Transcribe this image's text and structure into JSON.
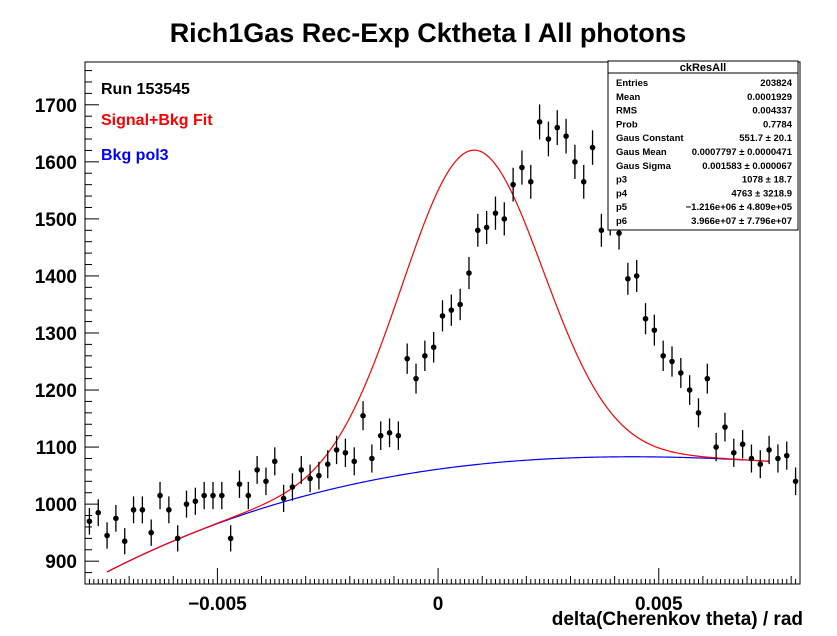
{
  "chart_data": {
    "type": "scatter",
    "title": "Rich1Gas Rec-Exp Cktheta I All photons",
    "xlabel": "delta(Cherenkov theta) / rad",
    "ylabel": "",
    "xlim": [
      -0.008,
      0.0082
    ],
    "ylim": [
      860,
      1775
    ],
    "x_tick_labels": [
      "−0.005",
      "0",
      "0.005"
    ],
    "x_tick_values": [
      -0.005,
      0,
      0.005
    ],
    "y_tick_labels": [
      "900",
      "1000",
      "1100",
      "1200",
      "1300",
      "1400",
      "1500",
      "1600",
      "1700"
    ],
    "y_tick_values": [
      900,
      1000,
      1100,
      1200,
      1300,
      1400,
      1500,
      1600,
      1700
    ],
    "grid": false,
    "legend_position": "top-left",
    "legend": [
      {
        "label": "Run 153545",
        "color": "#000000"
      },
      {
        "label": "Signal+Bkg Fit",
        "color": "#ff0000"
      },
      {
        "label": "Bkg pol3",
        "color": "#0000ff"
      }
    ],
    "stats_box": {
      "title": "ckResAll",
      "rows": [
        {
          "name": "Entries",
          "value": "203824"
        },
        {
          "name": "Mean",
          "value": "0.0001929"
        },
        {
          "name": "RMS",
          "value": "0.004337"
        },
        {
          "name": "Prob",
          "value": "0.7784"
        },
        {
          "name": "Gaus Constant",
          "value": "551.7 ± 20.1"
        },
        {
          "name": "Gaus Mean",
          "value": "0.0007797 ± 0.0000471"
        },
        {
          "name": "Gaus Sigma",
          "value": "0.001583 ± 0.000067"
        },
        {
          "name": "p3",
          "value": "1078 ± 18.7"
        },
        {
          "name": "p4",
          "value": "4763 ± 3218.9"
        },
        {
          "name": "p5",
          "value": "−1.216e+06 ± 4.809e+05"
        },
        {
          "name": "p6",
          "value": "3.966e+07 ± 7.796e+07"
        }
      ]
    },
    "series": [
      {
        "name": "All photons",
        "color": "#000000",
        "x": [
          -0.0079,
          -0.0077,
          -0.0075,
          -0.0073,
          -0.0071,
          -0.0069,
          -0.0067,
          -0.0065,
          -0.0063,
          -0.0061,
          -0.0059,
          -0.0057,
          -0.0055,
          -0.0053,
          -0.0051,
          -0.0049,
          -0.0047,
          -0.0045,
          -0.0043,
          -0.0041,
          -0.0039,
          -0.0037,
          -0.0035,
          -0.0033,
          -0.0031,
          -0.0029,
          -0.0027,
          -0.0025,
          -0.0023,
          -0.0021,
          -0.0019,
          -0.0017,
          -0.0015,
          -0.0013,
          -0.0011,
          -0.0009,
          -0.0007,
          -0.0005,
          -0.0003,
          -0.0001,
          0.0001,
          0.0003,
          0.0005,
          0.0007,
          0.0009,
          0.0011,
          0.0013,
          0.0015,
          0.0017,
          0.0019,
          0.0021,
          0.0023,
          0.0025,
          0.0027,
          0.0029,
          0.0031,
          0.0033,
          0.0035,
          0.0037,
          0.0039,
          0.0041,
          0.0043,
          0.0045,
          0.0047,
          0.0049,
          0.0051,
          0.0053,
          0.0055,
          0.0057,
          0.0059,
          0.0061,
          0.0063,
          0.0065,
          0.0067,
          0.0069,
          0.0071,
          0.0073,
          0.0075,
          0.0077,
          0.0079,
          0.0081
        ],
        "y": [
          970,
          985,
          945,
          975,
          935,
          990,
          990,
          950,
          1015,
          990,
          940,
          1000,
          1005,
          1015,
          1015,
          1015,
          940,
          1035,
          1015,
          1060,
          1040,
          1075,
          1010,
          1030,
          1060,
          1045,
          1050,
          1070,
          1095,
          1090,
          1075,
          1155,
          1080,
          1120,
          1125,
          1120,
          1255,
          1220,
          1260,
          1275,
          1330,
          1340,
          1350,
          1405,
          1480,
          1485,
          1510,
          1500,
          1560,
          1590,
          1565,
          1670,
          1640,
          1660,
          1645,
          1600,
          1565,
          1625,
          1480,
          1500,
          1475,
          1395,
          1400,
          1325,
          1305,
          1260,
          1250,
          1230,
          1200,
          1160,
          1220,
          1100,
          1135,
          1090,
          1105,
          1080,
          1070,
          1095,
          1080,
          1085,
          1040
        ]
      }
    ]
  }
}
